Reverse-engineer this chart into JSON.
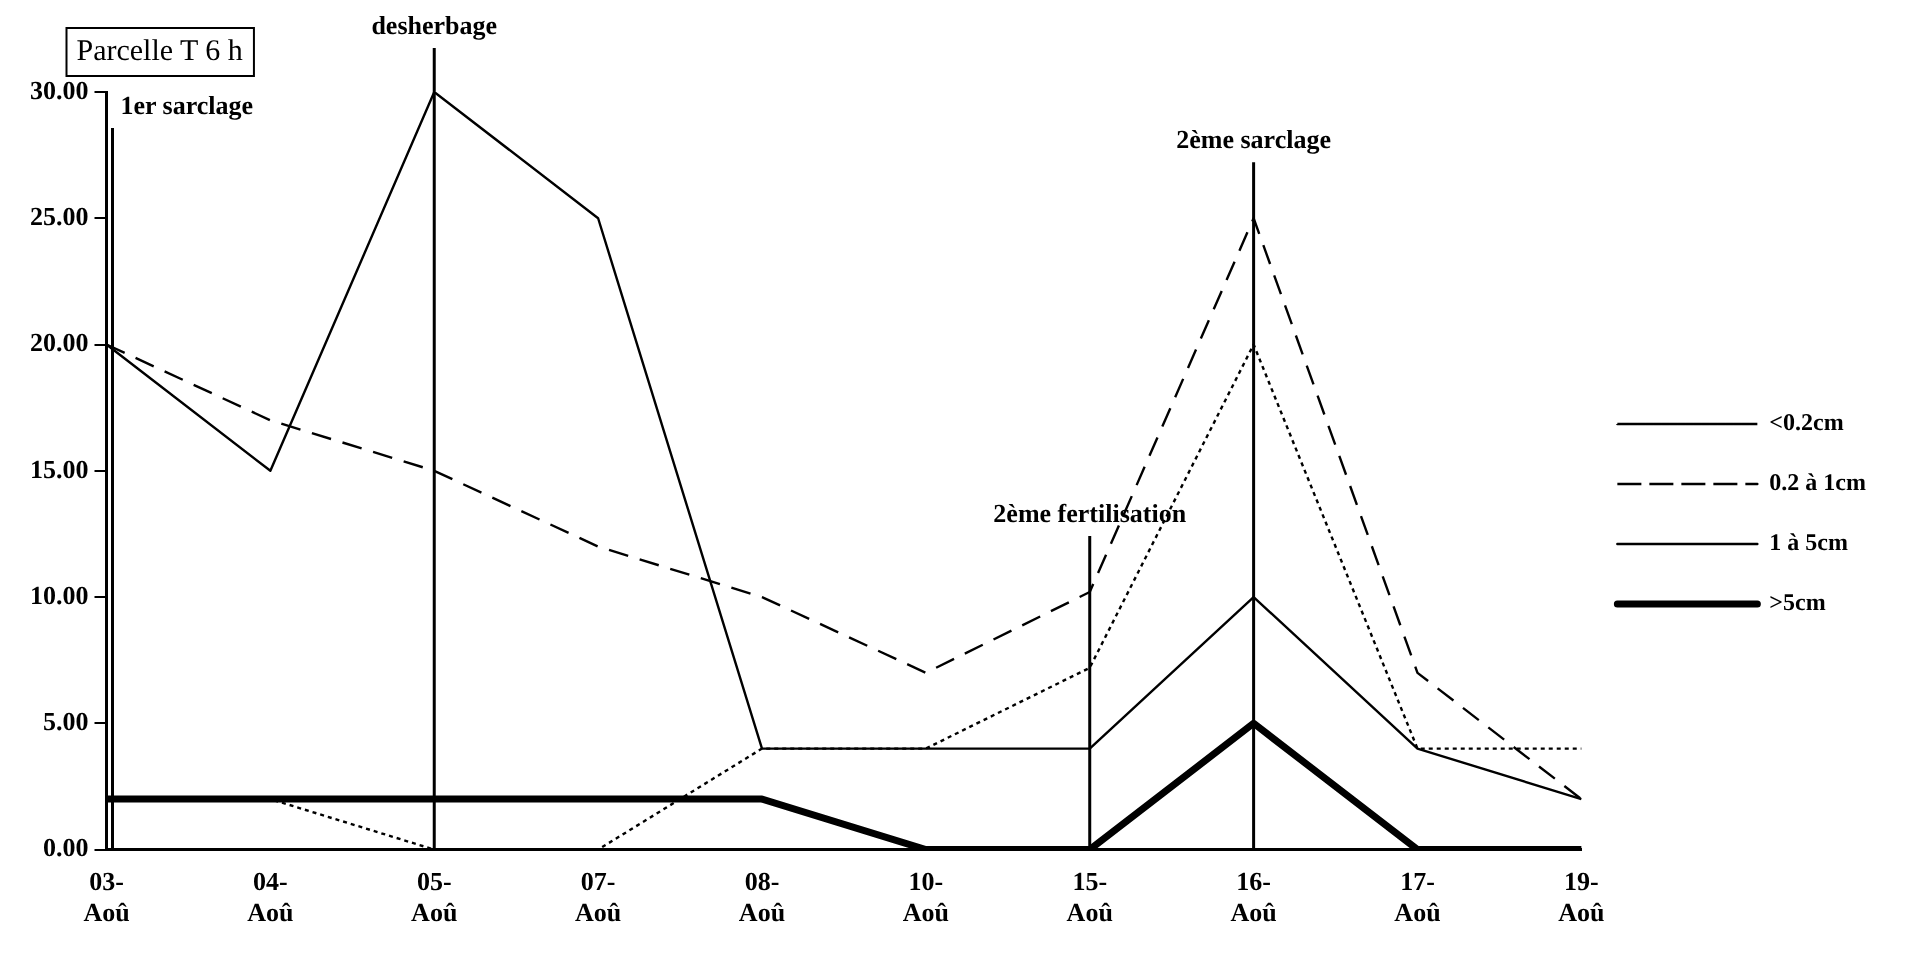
{
  "chart_data": {
    "type": "line",
    "title": "Parcelle T 6 h",
    "categories": [
      "03-Aoû",
      "04-Aoû",
      "05-Aoû",
      "07-Aoû",
      "08-Aoû",
      "10-Aoû",
      "15-Aoû",
      "16-Aoû",
      "17-Aoû",
      "19-Aoû"
    ],
    "series": [
      {
        "name": "<0.2cm",
        "color": "#000000",
        "line_style": "dotted",
        "values": [
          2,
          2,
          0,
          0,
          4,
          4,
          7.2,
          20,
          4,
          4
        ]
      },
      {
        "name": "0.2 à 1cm",
        "color": "#000000",
        "line_style": "dashed",
        "values": [
          20,
          17,
          15,
          12,
          10,
          7,
          10.2,
          25,
          7,
          2
        ]
      },
      {
        "name": "1 à 5cm",
        "color": "#000000",
        "line_style": "solid",
        "values": [
          20,
          15,
          30,
          25,
          4,
          4,
          4,
          10,
          4,
          2
        ]
      },
      {
        "name": ">5cm",
        "color": "#000000",
        "line_style": "solid",
        "values": [
          2,
          2,
          2,
          2,
          2,
          0,
          0,
          5,
          0,
          0
        ]
      }
    ],
    "ylim": [
      0,
      30
    ],
    "yticks": [
      {
        "value": 0,
        "label": "0.00"
      },
      {
        "value": 5,
        "label": "5.00"
      },
      {
        "value": 10,
        "label": "10.00"
      },
      {
        "value": 15,
        "label": "15.00"
      },
      {
        "value": 20,
        "label": "20.00"
      },
      {
        "value": 25,
        "label": "25.00"
      },
      {
        "value": 30,
        "label": "30.00"
      }
    ],
    "grid": false,
    "legend": "right",
    "ref_lines": [
      {
        "axis": "x",
        "value": "03-Aoû",
        "label": "1er sarclage"
      },
      {
        "axis": "x",
        "value": "05-Aoû",
        "label": "desherbage"
      },
      {
        "axis": "x",
        "value": "15-Aoû",
        "label": "2ème fertilisation"
      },
      {
        "axis": "x",
        "value": "16-Aoû",
        "label": "2ème sarclage"
      }
    ]
  }
}
